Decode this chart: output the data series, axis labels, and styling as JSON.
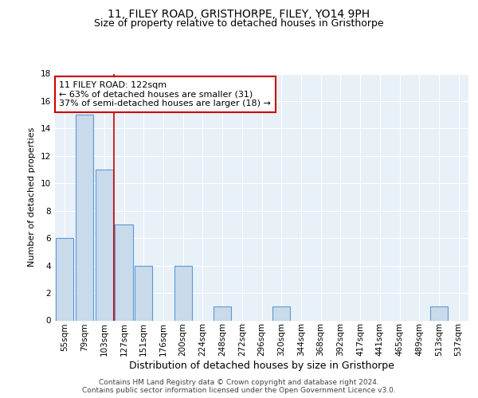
{
  "title": "11, FILEY ROAD, GRISTHORPE, FILEY, YO14 9PH",
  "subtitle": "Size of property relative to detached houses in Gristhorpe",
  "xlabel": "Distribution of detached houses by size in Gristhorpe",
  "ylabel": "Number of detached properties",
  "categories": [
    "55sqm",
    "79sqm",
    "103sqm",
    "127sqm",
    "151sqm",
    "176sqm",
    "200sqm",
    "224sqm",
    "248sqm",
    "272sqm",
    "296sqm",
    "320sqm",
    "344sqm",
    "368sqm",
    "392sqm",
    "417sqm",
    "441sqm",
    "465sqm",
    "489sqm",
    "513sqm",
    "537sqm"
  ],
  "values": [
    6,
    15,
    11,
    7,
    4,
    0,
    4,
    0,
    1,
    0,
    0,
    1,
    0,
    0,
    0,
    0,
    0,
    0,
    0,
    1,
    0
  ],
  "bar_color": "#c9daea",
  "bar_edge_color": "#5b9bd5",
  "bar_edge_width": 0.8,
  "red_line_x": 2.5,
  "annotation_line1": "11 FILEY ROAD: 122sqm",
  "annotation_line2": "← 63% of detached houses are smaller (31)",
  "annotation_line3": "37% of semi-detached houses are larger (18) →",
  "annotation_box_color": "#ffffff",
  "annotation_box_edge_color": "#cc0000",
  "ylim": [
    0,
    18
  ],
  "yticks": [
    0,
    2,
    4,
    6,
    8,
    10,
    12,
    14,
    16,
    18
  ],
  "background_color": "#e8f0f8",
  "grid_color": "#ffffff",
  "footer": "Contains HM Land Registry data © Crown copyright and database right 2024.\nContains public sector information licensed under the Open Government Licence v3.0.",
  "title_fontsize": 10,
  "subtitle_fontsize": 9,
  "xlabel_fontsize": 9,
  "ylabel_fontsize": 8,
  "tick_fontsize": 7.5,
  "footer_fontsize": 6.5,
  "annotation_fontsize": 8
}
